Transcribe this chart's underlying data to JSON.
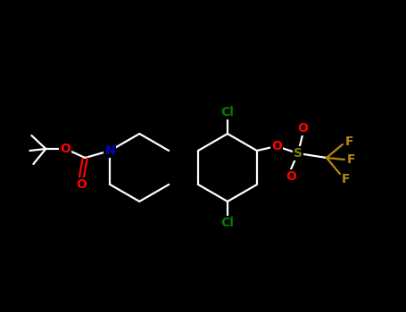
{
  "bg_color": "#000000",
  "line_color": "#ffffff",
  "atom_colors": {
    "O": "#ff0000",
    "N": "#0000cc",
    "Cl": "#008000",
    "S": "#808000",
    "F": "#b8860b",
    "C": "#ffffff"
  },
  "figsize": [
    4.55,
    3.5
  ],
  "dpi": 100,
  "lw": 1.6,
  "fs": 10
}
